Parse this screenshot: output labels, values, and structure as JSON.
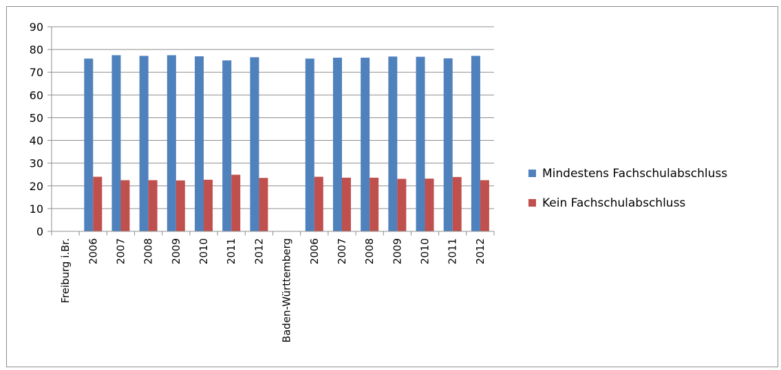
{
  "chart_data": {
    "type": "bar",
    "title": "",
    "xlabel": "",
    "ylabel": "",
    "ylim": [
      0,
      90
    ],
    "yticks": [
      0,
      10,
      20,
      30,
      40,
      50,
      60,
      70,
      80,
      90
    ],
    "grid": true,
    "legend_position": "right",
    "categories": [
      "Freiburg i.Br.",
      "2006",
      "2007",
      "2008",
      "2009",
      "2010",
      "2011",
      "2012",
      "Baden-Württemberg",
      "2006",
      "2007",
      "2008",
      "2009",
      "2010",
      "2011",
      "2012"
    ],
    "series": [
      {
        "name": "Mindestens Fachschulabschluss",
        "color": "#4f81bd",
        "values": [
          null,
          76,
          77.5,
          77.2,
          77.5,
          77,
          75.2,
          76.6,
          null,
          76,
          76.4,
          76.4,
          76.9,
          76.8,
          76.1,
          77.2
        ]
      },
      {
        "name": "Kein Fachschulabschluss",
        "color": "#c0504d",
        "values": [
          null,
          24,
          22.5,
          22.5,
          22.4,
          22.7,
          24.9,
          23.5,
          null,
          24,
          23.6,
          23.6,
          23.1,
          23.2,
          23.9,
          22.5
        ]
      }
    ]
  }
}
